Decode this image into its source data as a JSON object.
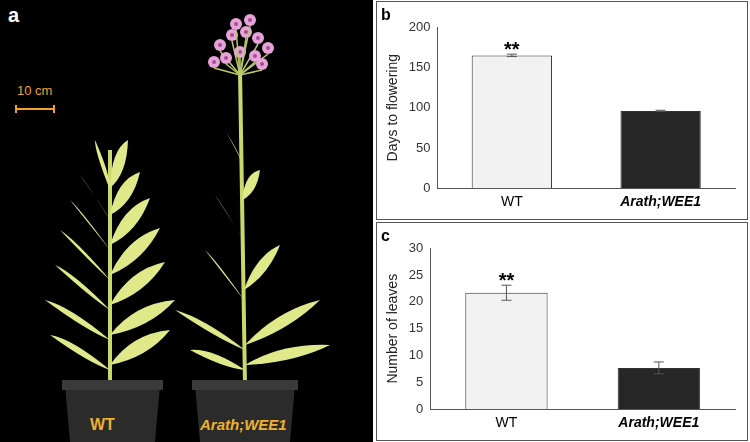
{
  "photo": {
    "label": "a",
    "scale_bar": "10 cm",
    "plants": [
      "WT",
      "Arath;WEE1"
    ]
  },
  "chart_data": [
    {
      "type": "bar",
      "title": "b",
      "categories": [
        "WT",
        "Arath;WEE1"
      ],
      "values": [
        165,
        96
      ],
      "errors": [
        1.5,
        0.8
      ],
      "colors": [
        "#f2f2f2",
        "#262626"
      ],
      "y_label": "Days to flowering",
      "ylim": [
        0,
        200
      ],
      "yticks": [
        0,
        50,
        100,
        150,
        200
      ],
      "grid": false,
      "annotations": [
        {
          "text": "**",
          "category": "WT"
        }
      ]
    },
    {
      "type": "bar",
      "title": "c",
      "categories": [
        "WT",
        "Arath;WEE1"
      ],
      "values": [
        21.7,
        7.7
      ],
      "errors": [
        1.4,
        1.1
      ],
      "colors": [
        "#f2f2f2",
        "#262626"
      ],
      "y_label": "Number of leaves",
      "ylim": [
        0,
        30
      ],
      "yticks": [
        0,
        5,
        10,
        15,
        20,
        25,
        30
      ],
      "grid": false,
      "annotations": [
        {
          "text": "**",
          "category": "WT"
        }
      ]
    }
  ]
}
